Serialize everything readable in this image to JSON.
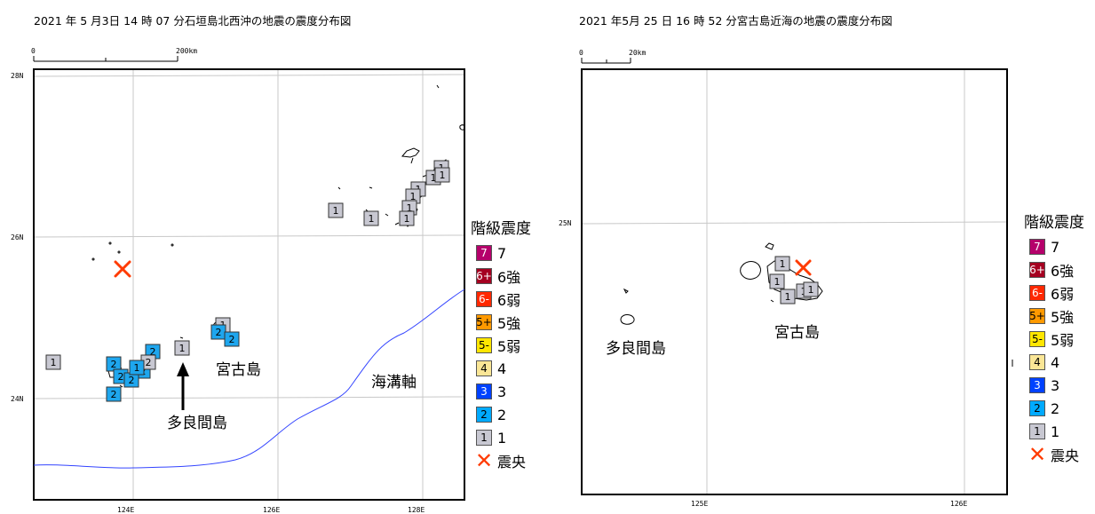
{
  "maps": [
    {
      "title": "2021 年 5 月3日 14 時 07 分石垣島北西沖の地震の震度分布図",
      "scale": {
        "start": "0",
        "end": "200km"
      },
      "lat_labels": [
        "28N",
        "26N",
        "24N"
      ],
      "lon_labels": [
        "124E",
        "126E",
        "128E"
      ],
      "place_labels": {
        "miyako": "宮古島",
        "tarama": "多良間島",
        "trench": "海溝軸"
      },
      "stations": [
        {
          "text": "1"
        },
        {
          "text": "1"
        },
        {
          "text": "1"
        },
        {
          "text": "1"
        },
        {
          "text": "1"
        },
        {
          "text": "1"
        },
        {
          "text": "1"
        },
        {
          "text": "1"
        },
        {
          "text": "1"
        },
        {
          "text": "1"
        },
        {
          "text": "1"
        },
        {
          "text": "2"
        },
        {
          "text": "2"
        },
        {
          "text": "2"
        },
        {
          "text": "2"
        },
        {
          "text": "2"
        },
        {
          "text": "2"
        },
        {
          "text": "2"
        },
        {
          "text": "2"
        },
        {
          "text": "2"
        },
        {
          "text": "1"
        },
        {
          "text": "1"
        }
      ]
    },
    {
      "title": "2021 年5月 25 日 16 時 52 分宮古島近海の地震の震度分布図",
      "scale": {
        "start": "0",
        "end": "20km"
      },
      "lat_labels": [
        "25N"
      ],
      "lon_labels": [
        "125E",
        "126E"
      ],
      "place_labels": {
        "miyako": "宮古島",
        "tarama": "多良間島"
      },
      "stations": [
        {
          "text": "1"
        },
        {
          "text": "1"
        },
        {
          "text": "1"
        },
        {
          "text": "1"
        },
        {
          "text": "1"
        }
      ]
    }
  ],
  "legend": {
    "title": "階級震度",
    "items": [
      {
        "swatch": "7",
        "label": "7",
        "color": "#b5006b",
        "text_color": "#ffffff"
      },
      {
        "swatch": "6+",
        "label": "6強",
        "color": "#a50021",
        "text_color": "#ffffff"
      },
      {
        "swatch": "6-",
        "label": "6弱",
        "color": "#ff2800",
        "text_color": "#ffffff"
      },
      {
        "swatch": "5+",
        "label": "5強",
        "color": "#ff9900",
        "text_color": "#000000"
      },
      {
        "swatch": "5-",
        "label": "5弱",
        "color": "#ffe600",
        "text_color": "#000000"
      },
      {
        "swatch": "4",
        "label": "4",
        "color": "#fae696",
        "text_color": "#000000"
      },
      {
        "swatch": "3",
        "label": "3",
        "color": "#0041ff",
        "text_color": "#ffffff"
      },
      {
        "swatch": "2",
        "label": "2",
        "color": "#00aaff",
        "text_color": "#000000"
      },
      {
        "swatch": "1",
        "label": "1",
        "color": "#c8c8d2",
        "text_color": "#000000"
      }
    ],
    "epicenter_label": "震央"
  },
  "colors": {
    "epicenter": "#ff3b00",
    "trench_axis": "#3344ff",
    "intensity_1": "#c8c8d2",
    "intensity_2": "#1ea6ee"
  }
}
